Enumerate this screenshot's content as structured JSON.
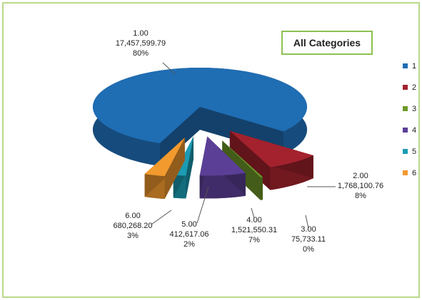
{
  "chart_data": {
    "type": "pie",
    "title": "All Categories",
    "categories": [
      "1",
      "2",
      "3",
      "4",
      "5",
      "6"
    ],
    "slice_labels": [
      "1.00",
      "2.00",
      "3.00",
      "4.00",
      "5.00",
      "6.00"
    ],
    "values": [
      17457599.79,
      1768100.76,
      75733.11,
      1521550.31,
      412617.06,
      680268.2
    ],
    "value_labels": [
      "17,457,599.79",
      "1,768,100.76",
      "75,733.11",
      "1,521,550.31",
      "412,617.06",
      "680,268.20"
    ],
    "percent_labels": [
      "80%",
      "8%",
      "0%",
      "7%",
      "2%",
      "3%"
    ],
    "colors": [
      "#1f6db3",
      "#a3222d",
      "#6f9a2a",
      "#5b3f96",
      "#1b9bb3",
      "#f29a2e"
    ],
    "legend": "right"
  }
}
